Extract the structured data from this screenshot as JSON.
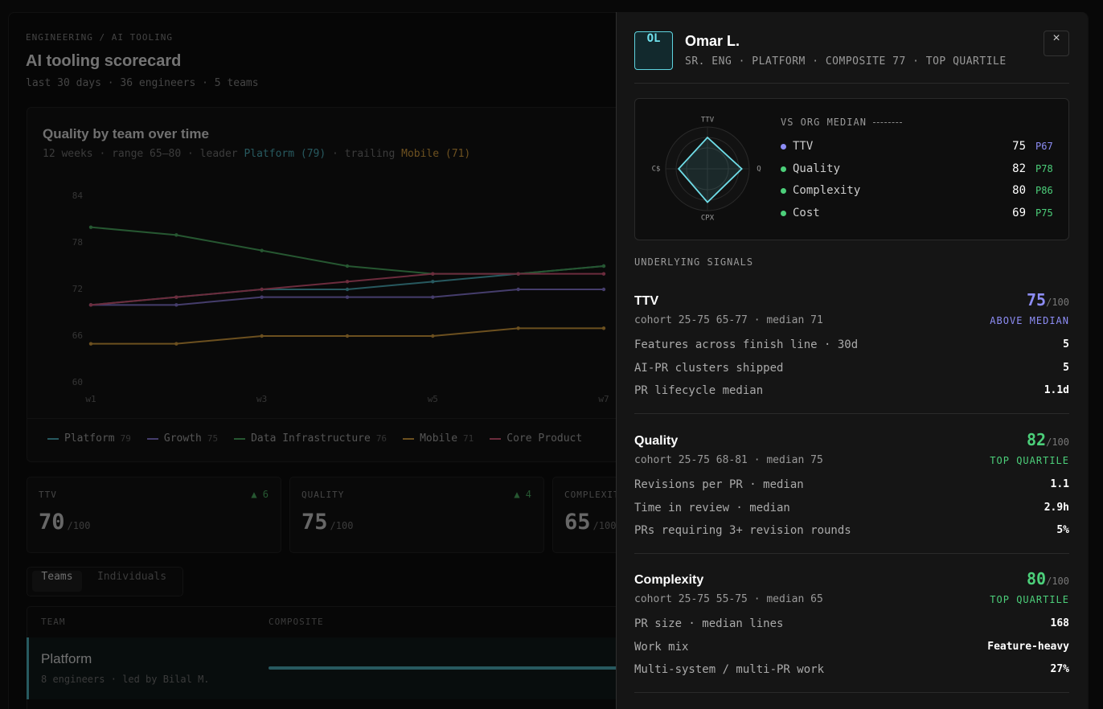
{
  "header": {
    "breadcrumb": "ENGINEERING / AI TOOLING",
    "title": "AI tooling scorecard",
    "subtitle": "last 30 days · 36 engineers · 5 teams"
  },
  "chart": {
    "type": "line",
    "title": "Quality by team over time",
    "subtitle_parts": [
      "12 weeks · range 65–80 · leader ",
      "Platform (79)",
      " · trailing ",
      "Mobile (71)"
    ],
    "categories": [
      "w1",
      null,
      "w3",
      null,
      "w5",
      null,
      "w7"
    ],
    "ylim": [
      60,
      84
    ],
    "yticks": [
      60,
      66,
      72,
      78,
      84
    ],
    "series": [
      {
        "name": "Platform",
        "color": "#4fb3bf",
        "latest": 79,
        "values": [
          70,
          71,
          72,
          72,
          73,
          74,
          75
        ]
      },
      {
        "name": "Growth",
        "color": "#8b7bd8",
        "latest": 75,
        "values": [
          70,
          70,
          71,
          71,
          71,
          72,
          72
        ]
      },
      {
        "name": "Data Infrastructure",
        "color": "#4caf63",
        "latest": 76,
        "values": [
          80,
          79,
          77,
          75,
          74,
          74,
          75
        ]
      },
      {
        "name": "Mobile",
        "color": "#d9a03f",
        "latest": 71,
        "values": [
          65,
          65,
          66,
          66,
          66,
          67,
          67
        ]
      },
      {
        "name": "Core Product",
        "color": "#d9587a",
        "values": [
          70,
          71,
          72,
          73,
          74,
          74,
          74
        ]
      }
    ]
  },
  "kpis": [
    {
      "label": "TTV",
      "delta": "▲ 6",
      "value": 70,
      "suffix": "/100"
    },
    {
      "label": "QUALITY",
      "delta": "▲ 4",
      "value": 75,
      "suffix": "/100"
    },
    {
      "label": "COMPLEXITY",
      "value": 65,
      "suffix": "/100"
    }
  ],
  "tabs": [
    "Teams",
    "Individuals"
  ],
  "table": {
    "columns": [
      "TEAM",
      "COMPOSITE"
    ],
    "rows": [
      {
        "name": "Platform",
        "meta": "8 engineers · led by Bilal M."
      }
    ]
  },
  "drawer": {
    "initials": "OL",
    "name": "Omar L.",
    "subtitle": "SR. ENG · PLATFORM · COMPOSITE 77 · TOP QUARTILE",
    "close": "×",
    "radar_title": "VS ORG MEDIAN",
    "metrics": [
      {
        "axis": "TTV",
        "name": "TTV",
        "value": 75,
        "percentile": "P67",
        "color": "#8d8df5"
      },
      {
        "axis": "Q",
        "name": "Quality",
        "value": 82,
        "percentile": "P78",
        "color": "#4ccf7a"
      },
      {
        "axis": "CPX",
        "name": "Complexity",
        "value": 80,
        "percentile": "P86",
        "color": "#4ccf7a"
      },
      {
        "axis": "C$",
        "name": "Cost",
        "value": 69,
        "percentile": "P75",
        "color": "#4ccf7a"
      }
    ],
    "signals_title": "UNDERLYING SIGNALS",
    "signals": [
      {
        "name": "TTV",
        "score": 75,
        "suffix": "/100",
        "cohort": "cohort 25-75 65-77 · median 71",
        "status": "ABOVE MEDIAN",
        "color": "#8d8df5",
        "rows": [
          {
            "label": "Features across finish line · 30d",
            "value": 5
          },
          {
            "label": "AI-PR clusters shipped",
            "value": 5
          },
          {
            "label": "PR lifecycle median",
            "value": "1.1d"
          }
        ]
      },
      {
        "name": "Quality",
        "score": 82,
        "suffix": "/100",
        "cohort": "cohort 25-75 68-81 · median 75",
        "status": "TOP QUARTILE",
        "color": "#4ccf7a",
        "rows": [
          {
            "label": "Revisions per PR · median",
            "value": 1.1
          },
          {
            "label": "Time in review · median",
            "value": "2.9h"
          },
          {
            "label": "PRs requiring 3+ revision rounds",
            "value": "5%"
          }
        ]
      },
      {
        "name": "Complexity",
        "score": 80,
        "suffix": "/100",
        "cohort": "cohort 25-75 55-75 · median 65",
        "status": "TOP QUARTILE",
        "color": "#4ccf7a",
        "rows": [
          {
            "label": "PR size · median lines",
            "value": 168
          },
          {
            "label": "Work mix",
            "value": "Feature-heavy"
          },
          {
            "label": "Multi-system / multi-PR work",
            "value": "27%"
          }
        ]
      }
    ]
  }
}
